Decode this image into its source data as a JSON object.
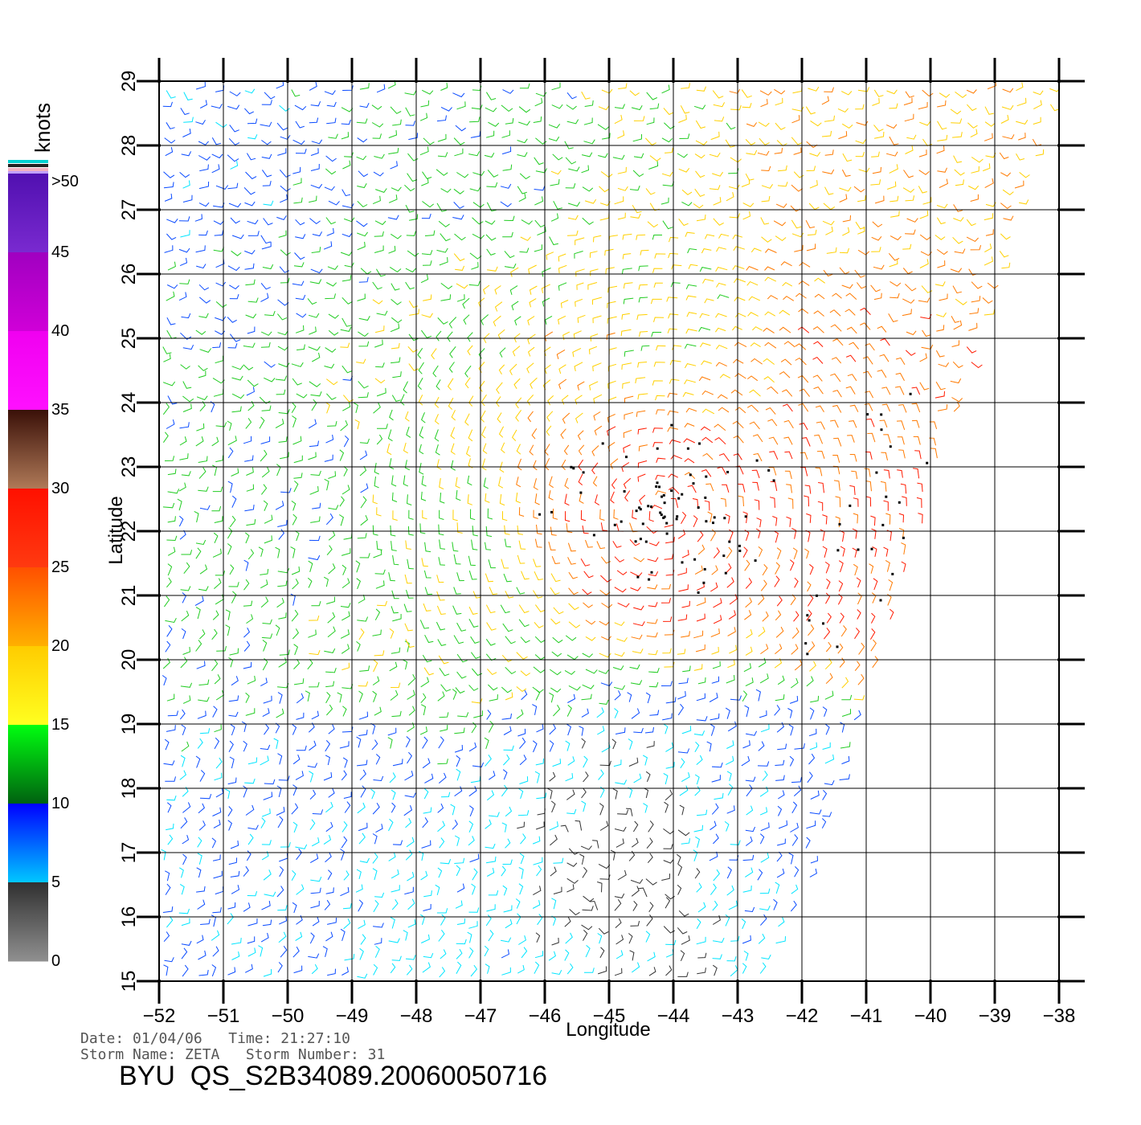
{
  "colorbar": {
    "title": "knots",
    "labels": [
      ">50",
      "45",
      "40",
      "35",
      "30",
      "25",
      "20",
      "15",
      "10",
      "5",
      "0"
    ],
    "colors": {
      "0-5": "#333333",
      "5-10": "#00e5ff",
      "10-15": "#0a4bff",
      "15-20": "#22cc22",
      "20-25": "#ffd000",
      "25-30": "#ff7a00",
      "30-35": "#ff1a00",
      "35-40": "#7a3a1e",
      "40-45": "#e000e0",
      ">45": "#6a20c0"
    }
  },
  "axes": {
    "xlabel": "Longitude",
    "ylabel": "Latitude",
    "xlim": [
      -52,
      -38
    ],
    "ylim": [
      15,
      29
    ],
    "xticks": [
      "−52",
      "−51",
      "−50",
      "−49",
      "−48",
      "−47",
      "−46",
      "−45",
      "−44",
      "−43",
      "−42",
      "−41",
      "−40",
      "−39",
      "−38"
    ],
    "yticks": [
      "15",
      "16",
      "17",
      "18",
      "19",
      "20",
      "21",
      "22",
      "23",
      "24",
      "25",
      "26",
      "27",
      "28",
      "29"
    ]
  },
  "info": {
    "date_line": "Date: 01/04/06   Time: 21:27:10",
    "storm_line": "Storm Name: ZETA   Storm Number: 31",
    "product": "BYU  QS_S2B34089.20060050716"
  },
  "chart_data": {
    "type": "wind-barb-map",
    "storm_center": {
      "lon": -44.2,
      "lat": 22.3
    },
    "swath_east_edge": [
      [
        -38,
        29
      ],
      [
        -39.8,
        23.2
      ],
      [
        -41.8,
        16.8
      ],
      [
        -42.6,
        15.0
      ]
    ],
    "calm_region": {
      "lon": [
        -45.8,
        -43.9
      ],
      "lat": [
        15.8,
        17.6
      ]
    },
    "speed_samples": [
      {
        "lon": -51.5,
        "lat": 28.5,
        "knots": 12
      },
      {
        "lon": -47.0,
        "lat": 28.5,
        "knots": 17
      },
      {
        "lon": -39.5,
        "lat": 28.5,
        "knots": 24
      },
      {
        "lon": -44.0,
        "lat": 25.5,
        "knots": 22
      },
      {
        "lon": -41.0,
        "lat": 24.5,
        "knots": 28
      },
      {
        "lon": -44.0,
        "lat": 22.3,
        "knots": 32
      },
      {
        "lon": -40.5,
        "lat": 21.5,
        "knots": 32
      },
      {
        "lon": -50.0,
        "lat": 22.0,
        "knots": 17
      },
      {
        "lon": -48.0,
        "lat": 20.5,
        "knots": 19
      },
      {
        "lon": -50.0,
        "lat": 17.0,
        "knots": 11
      },
      {
        "lon": -47.5,
        "lat": 16.0,
        "knots": 8
      },
      {
        "lon": -44.8,
        "lat": 16.8,
        "knots": 3
      },
      {
        "lon": -42.5,
        "lat": 17.5,
        "knots": 11
      }
    ]
  }
}
